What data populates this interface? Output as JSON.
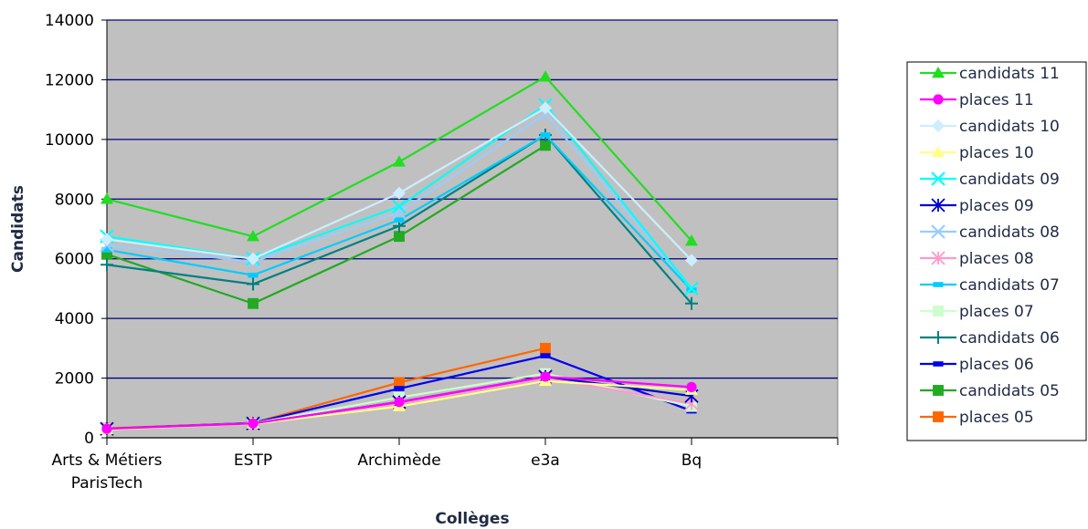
{
  "chart_data": {
    "type": "line",
    "xlabel": "Collèges",
    "ylabel": "Candidats",
    "categories": [
      [
        "Arts & Métiers",
        "ParisTech"
      ],
      [
        "ESTP"
      ],
      [
        "Archimède"
      ],
      [
        "e3a"
      ],
      [
        "Bq"
      ]
    ],
    "ylim": [
      0,
      14000
    ],
    "yticks": [
      0,
      2000,
      4000,
      6000,
      8000,
      10000,
      12000,
      14000
    ],
    "grid": true,
    "plot_background": "#c0c0c0",
    "legend_position": "right",
    "series": [
      {
        "name": "candidats 11",
        "color": "#22dd22",
        "marker": "triangle",
        "values": [
          8000,
          6750,
          9250,
          12100,
          6600
        ]
      },
      {
        "name": "places 11",
        "color": "#ff00ff",
        "marker": "circle",
        "values": [
          300,
          480,
          1200,
          2050,
          1700
        ]
      },
      {
        "name": "candidats 10",
        "color": "#cceeff",
        "marker": "diamond",
        "values": [
          6650,
          6000,
          8200,
          11050,
          5950
        ]
      },
      {
        "name": "places 10",
        "color": "#ffff88",
        "marker": "triangle",
        "values": [
          280,
          470,
          1050,
          1900,
          1600
        ]
      },
      {
        "name": "candidats 09",
        "color": "#00ffff",
        "marker": "x",
        "values": [
          6750,
          6000,
          7750,
          11150,
          5000
        ]
      },
      {
        "name": "places 09",
        "color": "#0000cc",
        "marker": "asterisk",
        "values": [
          300,
          480,
          1200,
          2050,
          1400
        ]
      },
      {
        "name": "candidats 08",
        "color": "#99ccff",
        "marker": "x",
        "values": [
          6450,
          5900,
          7550,
          10850,
          5000
        ]
      },
      {
        "name": "places 08",
        "color": "#ff99cc",
        "marker": "asterisk",
        "values": [
          290,
          460,
          1150,
          2000,
          1150
        ]
      },
      {
        "name": "candidats 07",
        "color": "#00ccff",
        "marker": "dash",
        "values": [
          6300,
          5450,
          7300,
          10150,
          4950
        ]
      },
      {
        "name": "places 07",
        "color": "#ccffcc",
        "marker": "square",
        "values": [
          300,
          490,
          1350,
          2150,
          1050
        ]
      },
      {
        "name": "candidats 06",
        "color": "#008080",
        "marker": "plus",
        "values": [
          5800,
          5150,
          7100,
          10150,
          4500
        ]
      },
      {
        "name": "places 06",
        "color": "#0000ee",
        "marker": "dash",
        "values": [
          300,
          500,
          1650,
          2750,
          900
        ]
      },
      {
        "name": "candidats 05",
        "color": "#22aa22",
        "marker": "square",
        "values": [
          6150,
          4500,
          6750,
          9800,
          null
        ]
      },
      {
        "name": "places 05",
        "color": "#ff6600",
        "marker": "square",
        "values": [
          320,
          500,
          1850,
          3000,
          null
        ]
      }
    ]
  }
}
